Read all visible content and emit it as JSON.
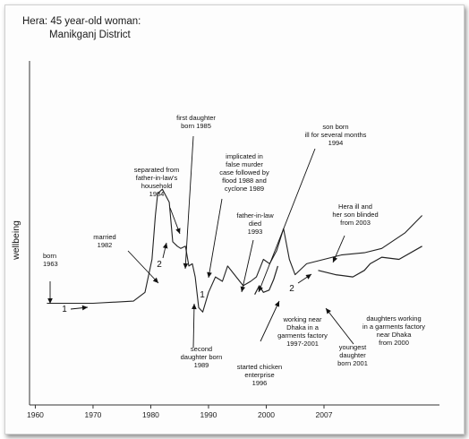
{
  "title_lines": [
    "Hera: 45 year-old woman:",
    "Manikganj District"
  ],
  "ylabel": "wellbeing",
  "chart_data": {
    "type": "line",
    "title": "Hera: 45 year-old woman: Manikganj District",
    "ylabel": "wellbeing",
    "xlim": [
      1959,
      2030
    ],
    "xticks": [
      "1960",
      "1970",
      "1980",
      "1990",
      "2000",
      "2007"
    ],
    "series": [
      {
        "kind": "main",
        "points": [
          [
            1962,
            10
          ],
          [
            1970,
            10
          ],
          [
            1977,
            11
          ],
          [
            1979,
            15
          ],
          [
            1980.2,
            30
          ],
          [
            1980.8,
            50
          ],
          [
            1981.2,
            60
          ],
          [
            1982,
            62
          ],
          [
            1983.2,
            56
          ],
          [
            1983.8,
            38
          ],
          [
            1984.6,
            36
          ],
          [
            1985.2,
            35
          ],
          [
            1986,
            36
          ],
          [
            1986.6,
            27
          ],
          [
            1987.2,
            28
          ],
          [
            1987.7,
            22
          ],
          [
            1988.3,
            8
          ],
          [
            1989,
            6
          ],
          [
            1990,
            15
          ],
          [
            1991.2,
            22
          ],
          [
            1992.4,
            20
          ],
          [
            1993.3,
            27
          ],
          [
            1994.5,
            23
          ],
          [
            1996,
            18
          ],
          [
            1997.3,
            20
          ],
          [
            1998.3,
            22
          ],
          [
            1999.5,
            30
          ],
          [
            2000.6,
            28
          ],
          [
            2001.8,
            34
          ],
          [
            2003,
            44
          ],
          [
            2004,
            30
          ],
          [
            2005,
            23
          ],
          [
            2007,
            28
          ],
          [
            2010,
            30
          ],
          [
            2013,
            32
          ],
          [
            2017,
            33
          ],
          [
            2020,
            35
          ],
          [
            2024,
            42
          ],
          [
            2027,
            50
          ]
        ]
      },
      {
        "kind": "minor",
        "points": [
          [
            1998,
            14
          ],
          [
            1998.8,
            18
          ],
          [
            1999.5,
            15
          ],
          [
            2000.5,
            16
          ],
          [
            2001.3,
            21
          ],
          [
            2002,
            27
          ]
        ]
      },
      {
        "kind": "minor",
        "points": [
          [
            2009,
            25
          ],
          [
            2012,
            23
          ],
          [
            2015,
            22
          ],
          [
            2017,
            25
          ],
          [
            2018,
            28
          ],
          [
            2020,
            31
          ],
          [
            2023,
            30
          ],
          [
            2027,
            36
          ]
        ]
      }
    ],
    "annotations": [
      {
        "lines": [
          "born",
          "1963"
        ],
        "x": 1963
      },
      {
        "lines": [
          "married",
          "1982"
        ],
        "x": 1982
      },
      {
        "lines": [
          "separated from",
          "father-in-law's",
          "household",
          "1984"
        ],
        "x": 1984
      },
      {
        "lines": [
          "first daughter",
          "born 1985"
        ],
        "x": 1985
      },
      {
        "lines": [
          "implicated in",
          "false murder",
          "case followed by",
          "flood 1988 and",
          "cyclone 1989"
        ],
        "x": 1988
      },
      {
        "lines": [
          "father-in-law",
          "died",
          "1993"
        ],
        "x": 1993
      },
      {
        "lines": [
          "son born",
          "ill for several months",
          "1994"
        ],
        "x": 1994
      },
      {
        "lines": [
          "Hera ill and",
          "her son blinded",
          "from 2003"
        ],
        "x": 2003
      },
      {
        "lines": [
          "second",
          "daughter born",
          "1989"
        ],
        "x": 1989
      },
      {
        "lines": [
          "started chicken",
          "enterprise",
          "1996"
        ],
        "x": 1996
      },
      {
        "lines": [
          "working near",
          "Dhaka in a",
          "garments factory",
          "1997-2001"
        ],
        "x": 1997
      },
      {
        "lines": [
          "youngest",
          "daughter",
          "born 2001"
        ],
        "x": 2001
      },
      {
        "lines": [
          "daughters working",
          "in a garments factory",
          "near Dhaka",
          "from 2000"
        ],
        "x": 2000
      }
    ],
    "step_labels": [
      "1",
      "2",
      "1",
      "2"
    ],
    "grid": false
  }
}
